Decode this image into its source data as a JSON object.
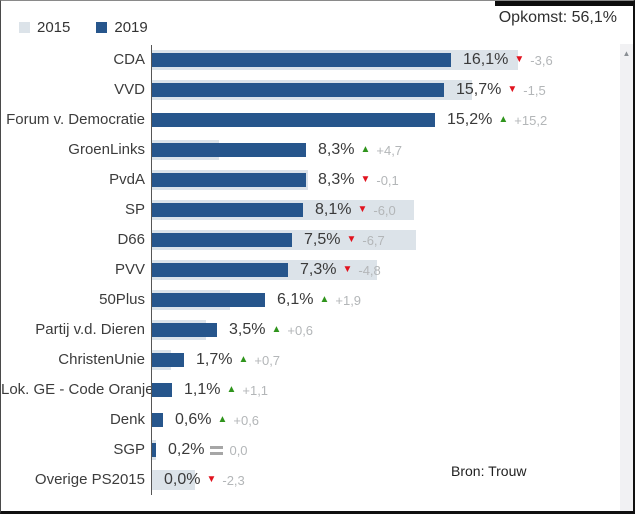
{
  "header": {
    "legend": [
      {
        "label": "2015",
        "swatch_color": "#dce3e9"
      },
      {
        "label": "2019",
        "swatch_color": "#27568c"
      }
    ],
    "turnout_label": "Opkomst: 56,1%"
  },
  "source_label": "Bron: Trouw",
  "scrollbar": {
    "up_arrow": "▲"
  },
  "colors": {
    "bar_2019": "#27568c",
    "bar_2015": "#dce3e9",
    "increase": "#2f941c",
    "decrease": "#e1131e",
    "no_change": "#a6a6a6",
    "change_text": "#b3b6b8"
  },
  "chart_data": {
    "type": "bar",
    "orientation": "horizontal",
    "unit": "percent",
    "legend_position": "top-left",
    "x_axis": {
      "visible_baseline": true,
      "approx_max_pct": 20
    },
    "categories": [
      "CDA",
      "VVD",
      "Forum v. Democratie",
      "GroenLinks",
      "PvdA",
      "SP",
      "D66",
      "PVV",
      "50Plus",
      "Partij v.d. Dieren",
      "ChristenUnie",
      "Lok. GE - Code Oranje",
      "Denk",
      "SGP",
      "Overige PS2015"
    ],
    "series": [
      {
        "name": "2015",
        "values": [
          19.7,
          17.2,
          0,
          3.6,
          8.4,
          14.1,
          14.2,
          12.1,
          4.2,
          2.9,
          1.0,
          0,
          0,
          0.2,
          2.3
        ]
      },
      {
        "name": "2019",
        "values": [
          16.1,
          15.7,
          15.2,
          8.3,
          8.3,
          8.1,
          7.5,
          7.3,
          6.1,
          3.5,
          1.7,
          1.1,
          0.6,
          0.2,
          0.0
        ]
      }
    ],
    "rows": [
      {
        "party": "CDA",
        "value": 16.1,
        "prev": 19.7,
        "value_label": "16,1%",
        "change_label": "-3,6",
        "direction": "down"
      },
      {
        "party": "VVD",
        "value": 15.7,
        "prev": 17.2,
        "value_label": "15,7%",
        "change_label": "-1,5",
        "direction": "down"
      },
      {
        "party": "Forum v. Democratie",
        "value": 15.2,
        "prev": 0,
        "value_label": "15,2%",
        "change_label": "+15,2",
        "direction": "up"
      },
      {
        "party": "GroenLinks",
        "value": 8.3,
        "prev": 3.6,
        "value_label": "8,3%",
        "change_label": "+4,7",
        "direction": "up"
      },
      {
        "party": "PvdA",
        "value": 8.3,
        "prev": 8.4,
        "value_label": "8,3%",
        "change_label": "-0,1",
        "direction": "down"
      },
      {
        "party": "SP",
        "value": 8.1,
        "prev": 14.1,
        "value_label": "8,1%",
        "change_label": "-6,0",
        "direction": "down"
      },
      {
        "party": "D66",
        "value": 7.5,
        "prev": 14.2,
        "value_label": "7,5%",
        "change_label": "-6,7",
        "direction": "down"
      },
      {
        "party": "PVV",
        "value": 7.3,
        "prev": 12.1,
        "value_label": "7,3%",
        "change_label": "-4,8",
        "direction": "down"
      },
      {
        "party": "50Plus",
        "value": 6.1,
        "prev": 4.2,
        "value_label": "6,1%",
        "change_label": "+1,9",
        "direction": "up"
      },
      {
        "party": "Partij v.d. Dieren",
        "value": 3.5,
        "prev": 2.9,
        "value_label": "3,5%",
        "change_label": "+0,6",
        "direction": "up"
      },
      {
        "party": "ChristenUnie",
        "value": 1.7,
        "prev": 1.0,
        "value_label": "1,7%",
        "change_label": "+0,7",
        "direction": "up"
      },
      {
        "party": "Lok. GE - Code Oranje",
        "value": 1.1,
        "prev": 0,
        "value_label": "1,1%",
        "change_label": "+1,1",
        "direction": "up"
      },
      {
        "party": "Denk",
        "value": 0.6,
        "prev": 0,
        "value_label": "0,6%",
        "change_label": "+0,6",
        "direction": "up"
      },
      {
        "party": "SGP",
        "value": 0.2,
        "prev": 0.2,
        "value_label": "0,2%",
        "change_label": "0,0",
        "direction": "equal"
      },
      {
        "party": "Overige PS2015",
        "value": 0.0,
        "prev": 2.3,
        "value_label": "0,0%",
        "change_label": "-2,3",
        "direction": "down"
      }
    ],
    "annotations": {
      "turnout": "Opkomst: 56,1%",
      "source": "Bron: Trouw"
    }
  }
}
